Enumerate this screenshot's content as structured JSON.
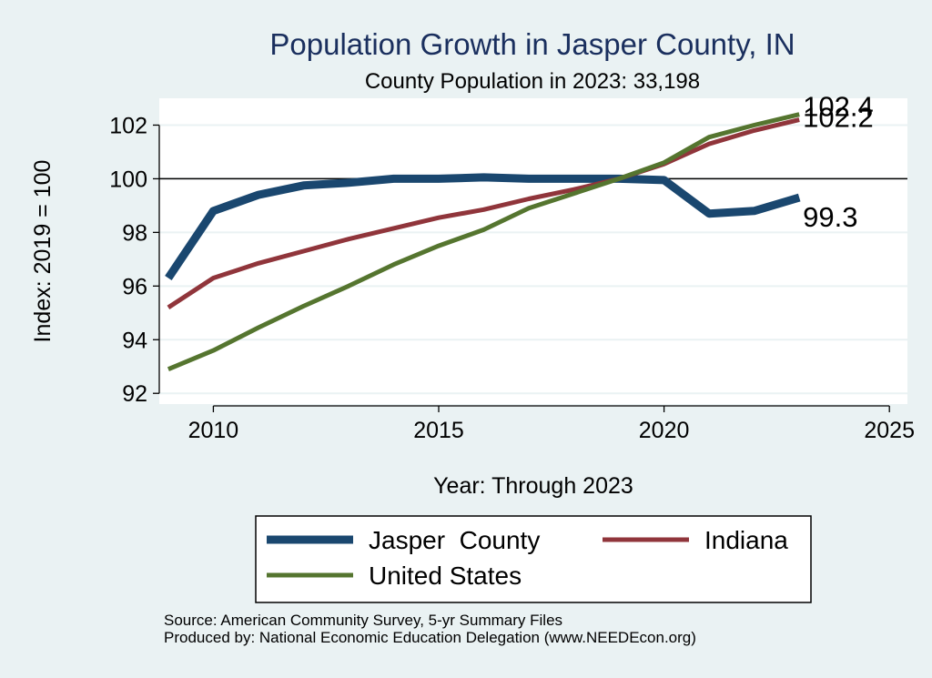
{
  "chart_data": {
    "type": "line",
    "title": "Population Growth in Jasper County, IN",
    "subtitle": "County Population in 2023: 33,198",
    "xlabel": "Year: Through 2023",
    "ylabel": "Index: 2019 = 100",
    "xlim": [
      2008.8,
      2025.4
    ],
    "ylim": [
      91.6,
      103
    ],
    "x_ticks": [
      2010,
      2015,
      2020,
      2025
    ],
    "y_ticks": [
      92,
      94,
      96,
      98,
      100,
      102
    ],
    "reference_line_y": 100,
    "grid": true,
    "legend_position": "bottom",
    "x": [
      2009,
      2010,
      2011,
      2012,
      2013,
      2014,
      2015,
      2016,
      2017,
      2018,
      2019,
      2020,
      2021,
      2022,
      2023
    ],
    "series": [
      {
        "name": "Jasper  County",
        "color": "#1a476f",
        "values": [
          96.3,
          98.8,
          99.4,
          99.75,
          99.85,
          100.0,
          100.0,
          100.05,
          100.0,
          100.0,
          100.0,
          99.95,
          98.7,
          98.8,
          99.3
        ],
        "end_label": "99.3"
      },
      {
        "name": "Indiana",
        "color": "#90353b",
        "values": [
          95.2,
          96.3,
          96.85,
          97.3,
          97.75,
          98.15,
          98.55,
          98.85,
          99.25,
          99.6,
          100.0,
          100.55,
          101.3,
          101.8,
          102.2
        ],
        "end_label": "102.2"
      },
      {
        "name": "United States",
        "color": "#55752f",
        "values": [
          92.9,
          93.6,
          94.45,
          95.25,
          96.0,
          96.8,
          97.5,
          98.1,
          98.9,
          99.45,
          100.0,
          100.6,
          101.55,
          102.0,
          102.4
        ],
        "end_label": "102.4"
      }
    ]
  },
  "footer": {
    "source": "Source: American Community Survey, 5-yr Summary Files",
    "produced_by": "Produced by: National Economic Education Delegation (www.NEEDEcon.org)"
  }
}
